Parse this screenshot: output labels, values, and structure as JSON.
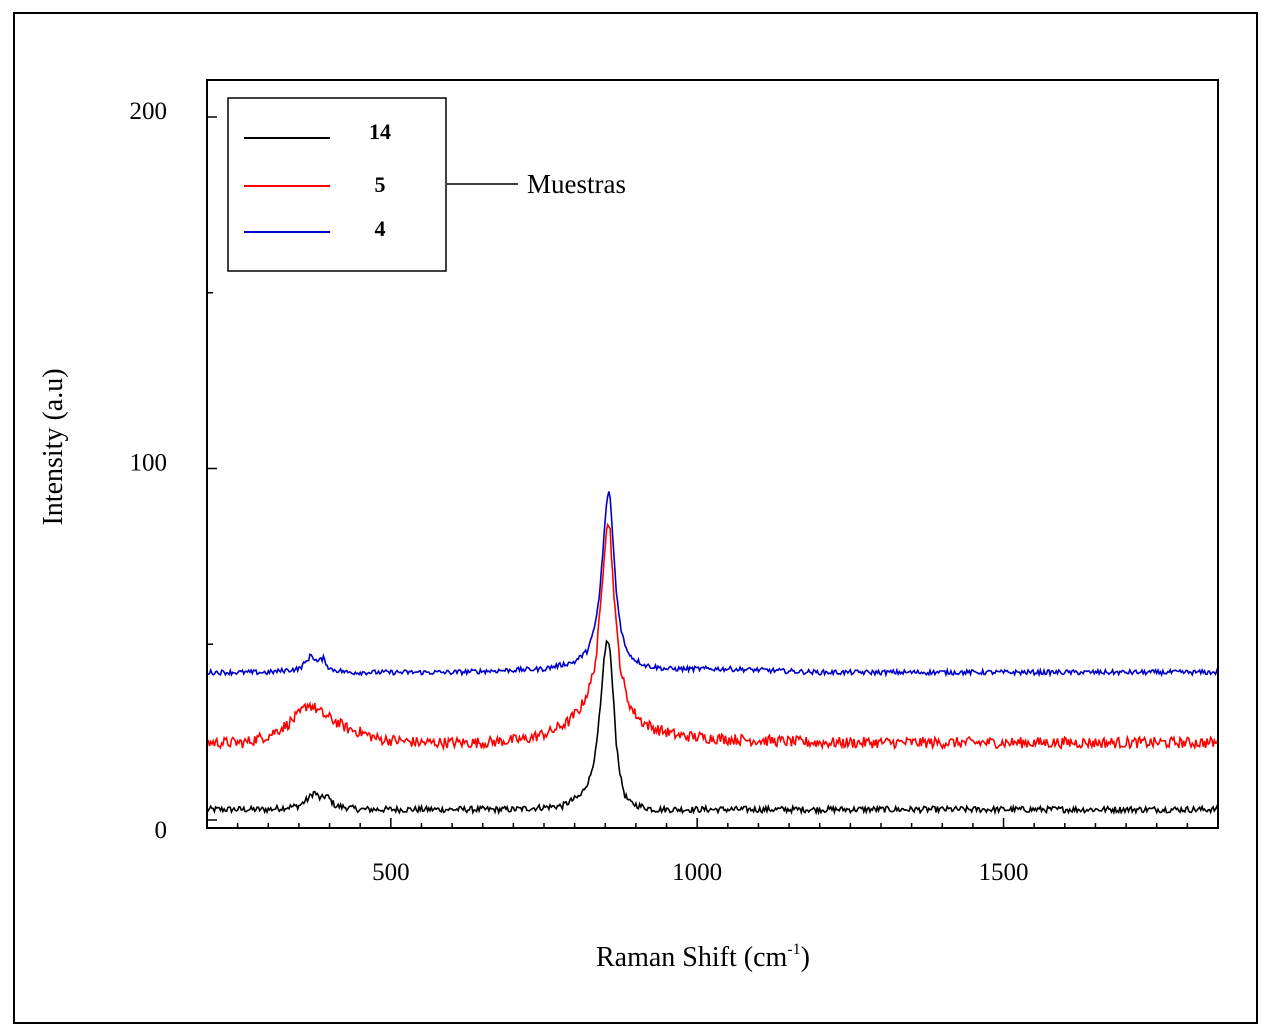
{
  "chart_data": {
    "type": "line",
    "xlabel": "Raman Shift (cm",
    "xlabel_sup": "-1",
    "xlabel_close": ")",
    "ylabel": "Intensity (a.u)",
    "xlim": [
      200,
      1850
    ],
    "ylim": [
      0,
      200
    ],
    "x_ticks": [
      500,
      1000,
      1500
    ],
    "y_ticks": [
      0,
      100,
      200
    ],
    "legend_placement": "top-left",
    "annotation": "Muestras",
    "series": [
      {
        "name": "14",
        "color": "#000000",
        "x": [
          200,
          300,
          350,
          365,
          375,
          385,
          395,
          410,
          450,
          550,
          700,
          780,
          810,
          825,
          835,
          842,
          848,
          853,
          858,
          863,
          868,
          875,
          882,
          890,
          905,
          930,
          1000,
          1100,
          1300,
          1500,
          1700,
          1850
        ],
        "y": [
          3,
          3,
          4,
          6,
          8,
          6,
          7,
          4,
          3,
          3,
          3,
          4,
          7,
          12,
          20,
          32,
          45,
          52,
          48,
          35,
          22,
          12,
          7,
          5,
          4,
          3,
          3,
          3,
          3,
          3,
          3,
          3
        ]
      },
      {
        "name": "5",
        "color": "#ff0000",
        "x": [
          200,
          260,
          300,
          330,
          350,
          365,
          375,
          390,
          410,
          430,
          450,
          480,
          550,
          650,
          720,
          760,
          790,
          810,
          825,
          835,
          842,
          848,
          853,
          858,
          862,
          868,
          875,
          885,
          895,
          910,
          930,
          970,
          1050,
          1200,
          1400,
          1600,
          1850
        ],
        "y": [
          22,
          22,
          24,
          27,
          30,
          33,
          32,
          30,
          28,
          26,
          25,
          23,
          22,
          22,
          23,
          25,
          28,
          32,
          38,
          46,
          60,
          75,
          86,
          82,
          70,
          55,
          43,
          35,
          31,
          28,
          26,
          24,
          23,
          22,
          22,
          22,
          22
        ]
      },
      {
        "name": "4",
        "color": "#0000cc",
        "x": [
          200,
          300,
          350,
          362,
          370,
          380,
          390,
          400,
          430,
          600,
          750,
          800,
          820,
          832,
          840,
          846,
          851,
          855,
          859,
          863,
          868,
          875,
          883,
          895,
          915,
          950,
          1050,
          1200,
          1400,
          1600,
          1850
        ],
        "y": [
          42,
          42,
          43,
          45,
          47,
          45,
          46,
          43,
          42,
          42,
          43,
          45,
          48,
          54,
          63,
          76,
          88,
          94,
          90,
          78,
          65,
          55,
          49,
          46,
          44,
          43,
          43,
          42,
          42,
          42,
          42
        ]
      }
    ]
  }
}
